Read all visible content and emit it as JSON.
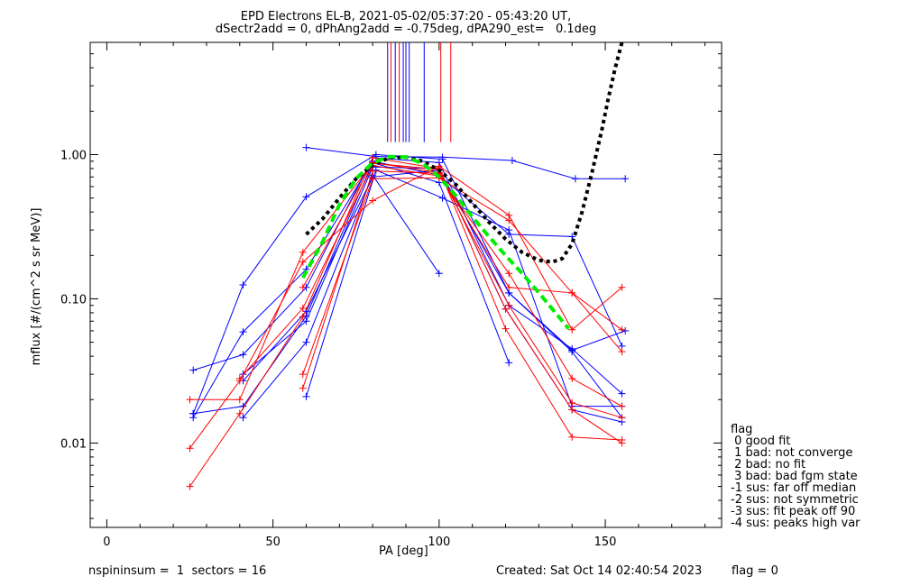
{
  "header": {
    "title_line1": "EPD Electrons EL-B, 2021-05-02/05:37:20 - 05:43:20 UT,",
    "title_line2": "dSectr2add = 0, dPhAng2add = -0.75deg, dPA290_est=   0.1deg"
  },
  "footer": {
    "left": "nspininsum =  1  sectors = 16",
    "created": "Created: Sat Oct 14 02:40:54 2023",
    "flag": "flag = 0"
  },
  "legend": {
    "title": "flag",
    "entries": [
      " 0 good fit",
      " 1 bad: not converge",
      " 2 bad: no fit",
      " 3 bad: bad fgm state",
      "-1 sus: far off median",
      "-2 sus: not symmetric",
      "-3 sus: fit peak off 90",
      "-4 sus: peaks high var"
    ]
  },
  "chart_data": {
    "type": "line",
    "xlabel": "PA [deg]",
    "ylabel": "mflux [#/(cm^2 s sr MeV)]",
    "xlim": [
      -5,
      185
    ],
    "ylim": [
      0.0026,
      6.0
    ],
    "yscale": "log",
    "x_ticks": [
      0,
      50,
      100,
      150
    ],
    "x_tick_labels": [
      "0",
      "50",
      "100",
      "150"
    ],
    "y_ticks": [
      0.01,
      0.1,
      1.0
    ],
    "y_tick_labels": [
      "0.01",
      "0.10",
      "1.00"
    ],
    "colors": {
      "blue": "#0000ff",
      "red": "#ff0000",
      "green": "#00ee00",
      "black": "#000000"
    },
    "series": [
      {
        "color": "blue",
        "values": [
          [
            26,
            0.032
          ],
          [
            41,
            0.041
          ],
          [
            60,
            0.12
          ],
          [
            80,
            0.95
          ],
          [
            100,
            0.88
          ],
          [
            121,
            0.09
          ],
          [
            140,
            0.045
          ],
          [
            155,
            0.022
          ]
        ]
      },
      {
        "color": "blue",
        "values": [
          [
            26,
            0.016
          ],
          [
            41,
            0.125
          ],
          [
            60,
            0.51
          ],
          [
            81,
            1.0
          ],
          [
            101,
            0.93
          ],
          [
            121,
            0.11
          ],
          [
            140,
            0.043
          ],
          [
            155,
            0.015
          ]
        ]
      },
      {
        "color": "blue",
        "values": [
          [
            26,
            0.015
          ],
          [
            41,
            0.059
          ],
          [
            60,
            0.16
          ],
          [
            80,
            0.9
          ],
          [
            100,
            0.72
          ],
          [
            121,
            0.28
          ],
          [
            140,
            0.27
          ],
          [
            155,
            0.047
          ]
        ]
      },
      {
        "color": "blue",
        "values": [
          [
            26,
            0.016
          ],
          [
            41,
            0.018
          ],
          [
            60,
            0.076
          ],
          [
            80,
            0.88
          ],
          [
            100,
            0.64
          ],
          [
            121,
            0.036
          ]
        ]
      },
      {
        "color": "blue",
        "values": [
          [
            41,
            0.015
          ],
          [
            60,
            0.05
          ],
          [
            80,
            0.72
          ],
          [
            100,
            0.15
          ]
        ]
      },
      {
        "color": "blue",
        "values": [
          [
            60,
            1.12
          ],
          [
            81,
            0.97
          ],
          [
            101,
            0.96
          ],
          [
            122,
            0.91
          ],
          [
            141,
            0.68
          ],
          [
            156,
            0.68
          ]
        ]
      },
      {
        "color": "blue",
        "values": [
          [
            60,
            0.021
          ],
          [
            81,
            0.78
          ],
          [
            101,
            0.5
          ],
          [
            121,
            0.3
          ],
          [
            140,
            0.018
          ],
          [
            155,
            0.018
          ]
        ]
      },
      {
        "color": "blue",
        "values": [
          [
            41,
            0.03
          ],
          [
            60,
            0.07
          ],
          [
            80,
            0.82
          ],
          [
            100,
            0.8
          ],
          [
            120,
            0.085
          ],
          [
            140,
            0.017
          ],
          [
            155,
            0.014
          ]
        ]
      },
      {
        "color": "blue",
        "values": [
          [
            41,
            0.027
          ],
          [
            60,
            0.082
          ],
          [
            80,
            0.7
          ],
          [
            100,
            0.78
          ],
          [
            121,
            0.11
          ],
          [
            140,
            0.044
          ],
          [
            156,
            0.06
          ]
        ]
      },
      {
        "color": "red",
        "values": [
          [
            25,
            0.0092
          ],
          [
            40,
            0.027
          ],
          [
            59,
            0.18
          ],
          [
            80,
            0.48
          ],
          [
            100,
            0.83
          ],
          [
            121,
            0.38
          ],
          [
            140,
            0.061
          ],
          [
            155,
            0.12
          ]
        ]
      },
      {
        "color": "red",
        "values": [
          [
            25,
            0.005
          ],
          [
            40,
            0.016
          ],
          [
            59,
            0.075
          ],
          [
            80,
            0.95
          ],
          [
            100,
            0.8
          ],
          [
            120,
            0.085
          ],
          [
            140,
            0.017
          ],
          [
            155,
            0.01
          ]
        ]
      },
      {
        "color": "red",
        "values": [
          [
            25,
            0.02
          ],
          [
            40,
            0.02
          ],
          [
            59,
            0.21
          ],
          [
            80,
            0.87
          ],
          [
            100,
            0.79
          ],
          [
            120,
            0.062
          ],
          [
            140,
            0.011
          ],
          [
            155,
            0.0105
          ]
        ]
      },
      {
        "color": "red",
        "values": [
          [
            40,
            0.028
          ],
          [
            59,
            0.086
          ],
          [
            80,
            0.84
          ],
          [
            100,
            0.71
          ],
          [
            121,
            0.15
          ],
          [
            140,
            0.028
          ],
          [
            155,
            0.018
          ]
        ]
      },
      {
        "color": "red",
        "values": [
          [
            59,
            0.03
          ],
          [
            80,
            0.68
          ],
          [
            100,
            0.69
          ],
          [
            121,
            0.35
          ],
          [
            140,
            0.11
          ],
          [
            155,
            0.043
          ]
        ]
      },
      {
        "color": "red",
        "values": [
          [
            59,
            0.024
          ],
          [
            80,
            0.77
          ],
          [
            100,
            0.74
          ],
          [
            121,
            0.12
          ],
          [
            140,
            0.11
          ],
          [
            155,
            0.061
          ]
        ]
      },
      {
        "color": "red",
        "values": [
          [
            59,
            0.12
          ],
          [
            80,
            0.88
          ],
          [
            100,
            0.75
          ],
          [
            121,
            0.09
          ],
          [
            140,
            0.019
          ],
          [
            155,
            0.015
          ]
        ]
      }
    ],
    "fit_curves": [
      {
        "color": "black",
        "style": "dotted",
        "values": [
          [
            60,
            0.28
          ],
          [
            65,
            0.36
          ],
          [
            70,
            0.5
          ],
          [
            75,
            0.68
          ],
          [
            80,
            0.85
          ],
          [
            85,
            0.95
          ],
          [
            90,
            0.96
          ],
          [
            95,
            0.9
          ],
          [
            100,
            0.78
          ],
          [
            105,
            0.62
          ],
          [
            110,
            0.46
          ],
          [
            115,
            0.34
          ],
          [
            120,
            0.26
          ],
          [
            125,
            0.21
          ],
          [
            130,
            0.185
          ],
          [
            134,
            0.18
          ],
          [
            137,
            0.19
          ],
          [
            140,
            0.24
          ],
          [
            143,
            0.4
          ],
          [
            146,
            0.75
          ],
          [
            149,
            1.5
          ],
          [
            151,
            2.5
          ],
          [
            153,
            4.0
          ],
          [
            155,
            6.0
          ]
        ]
      },
      {
        "color": "green",
        "style": "dashed",
        "values": [
          [
            59,
            0.14
          ],
          [
            65,
            0.25
          ],
          [
            70,
            0.45
          ],
          [
            75,
            0.68
          ],
          [
            80,
            0.88
          ],
          [
            85,
            0.97
          ],
          [
            90,
            0.96
          ],
          [
            95,
            0.87
          ],
          [
            100,
            0.7
          ],
          [
            105,
            0.52
          ],
          [
            110,
            0.37
          ],
          [
            115,
            0.27
          ],
          [
            120,
            0.2
          ],
          [
            125,
            0.15
          ],
          [
            130,
            0.11
          ],
          [
            135,
            0.08
          ],
          [
            139,
            0.062
          ]
        ]
      }
    ],
    "vertical_markers": [
      {
        "x": 84.5,
        "color": "blue"
      },
      {
        "x": 85.5,
        "color": "red"
      },
      {
        "x": 86.8,
        "color": "blue"
      },
      {
        "x": 88.0,
        "color": "red"
      },
      {
        "x": 89.2,
        "color": "blue"
      },
      {
        "x": 90.0,
        "color": "blue"
      },
      {
        "x": 91.0,
        "color": "blue"
      },
      {
        "x": 95.5,
        "color": "blue"
      },
      {
        "x": 100.5,
        "color": "red"
      },
      {
        "x": 103.5,
        "color": "red"
      }
    ],
    "marker_range": [
      1.22,
      6.0
    ]
  }
}
